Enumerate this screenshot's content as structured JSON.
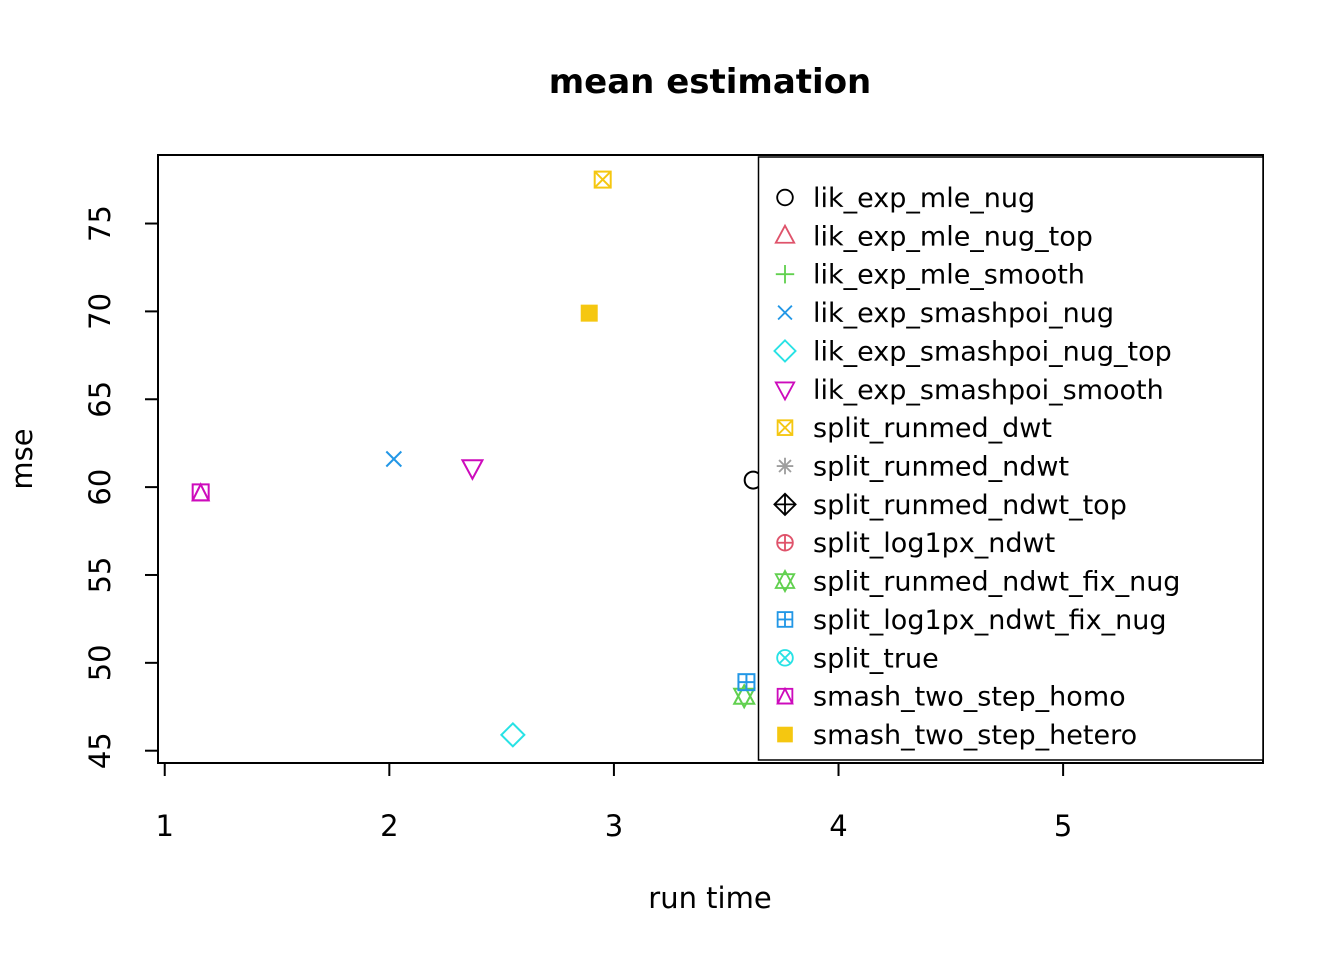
{
  "chart_data": {
    "type": "scatter",
    "title": "mean estimation",
    "xlabel": "run time",
    "ylabel": "mse",
    "xlim": [
      0.97,
      5.89
    ],
    "ylim": [
      44.3,
      78.9
    ],
    "x_ticks": [
      1,
      2,
      3,
      4,
      5
    ],
    "y_ticks": [
      45,
      50,
      55,
      60,
      65,
      70,
      75
    ],
    "grid": false,
    "legend_position": "inside-right",
    "colors": {
      "black": "#000000",
      "red": "#DF536B",
      "green": "#61D04F",
      "blue": "#2297E6",
      "cyan": "#28E2E5",
      "magenta": "#CD0BBC",
      "gold": "#F5C710",
      "gray": "#9E9E9E"
    },
    "series": [
      {
        "name": "lik_exp_mle_nug",
        "marker": "circle-open",
        "color": "#000000",
        "points": [
          [
            3.62,
            60.4
          ]
        ]
      },
      {
        "name": "lik_exp_mle_nug_top",
        "marker": "triangle-up-open",
        "color": "#DF536B",
        "points": []
      },
      {
        "name": "lik_exp_mle_smooth",
        "marker": "plus",
        "color": "#61D04F",
        "points": []
      },
      {
        "name": "lik_exp_smashpoi_nug",
        "marker": "x",
        "color": "#2297E6",
        "points": [
          [
            2.02,
            61.6
          ]
        ]
      },
      {
        "name": "lik_exp_smashpoi_nug_top",
        "marker": "diamond-open",
        "color": "#28E2E5",
        "points": [
          [
            2.55,
            45.9
          ]
        ]
      },
      {
        "name": "lik_exp_smashpoi_smooth",
        "marker": "triangle-down-open",
        "color": "#CD0BBC",
        "points": [
          [
            2.37,
            61.1
          ]
        ]
      },
      {
        "name": "split_runmed_dwt",
        "marker": "square-x",
        "color": "#F5C710",
        "points": [
          [
            2.95,
            77.5
          ]
        ]
      },
      {
        "name": "split_runmed_ndwt",
        "marker": "asterisk",
        "color": "#9E9E9E",
        "points": []
      },
      {
        "name": "split_runmed_ndwt_top",
        "marker": "diamond-plus",
        "color": "#000000",
        "points": []
      },
      {
        "name": "split_log1px_ndwt",
        "marker": "circle-plus",
        "color": "#DF536B",
        "points": []
      },
      {
        "name": "split_runmed_ndwt_fix_nug",
        "marker": "triangles-updown",
        "color": "#61D04F",
        "points": [
          [
            3.58,
            48.1
          ]
        ]
      },
      {
        "name": "split_log1px_ndwt_fix_nug",
        "marker": "square-plus",
        "color": "#2297E6",
        "points": [
          [
            3.59,
            48.9
          ]
        ]
      },
      {
        "name": "split_true",
        "marker": "circle-x",
        "color": "#28E2E5",
        "points": []
      },
      {
        "name": "smash_two_step_homo",
        "marker": "square-triangle",
        "color": "#CD0BBC",
        "points": [
          [
            1.16,
            59.7
          ]
        ]
      },
      {
        "name": "smash_two_step_hetero",
        "marker": "square-filled",
        "color": "#F5C710",
        "points": [
          [
            2.89,
            69.9
          ]
        ]
      }
    ]
  }
}
